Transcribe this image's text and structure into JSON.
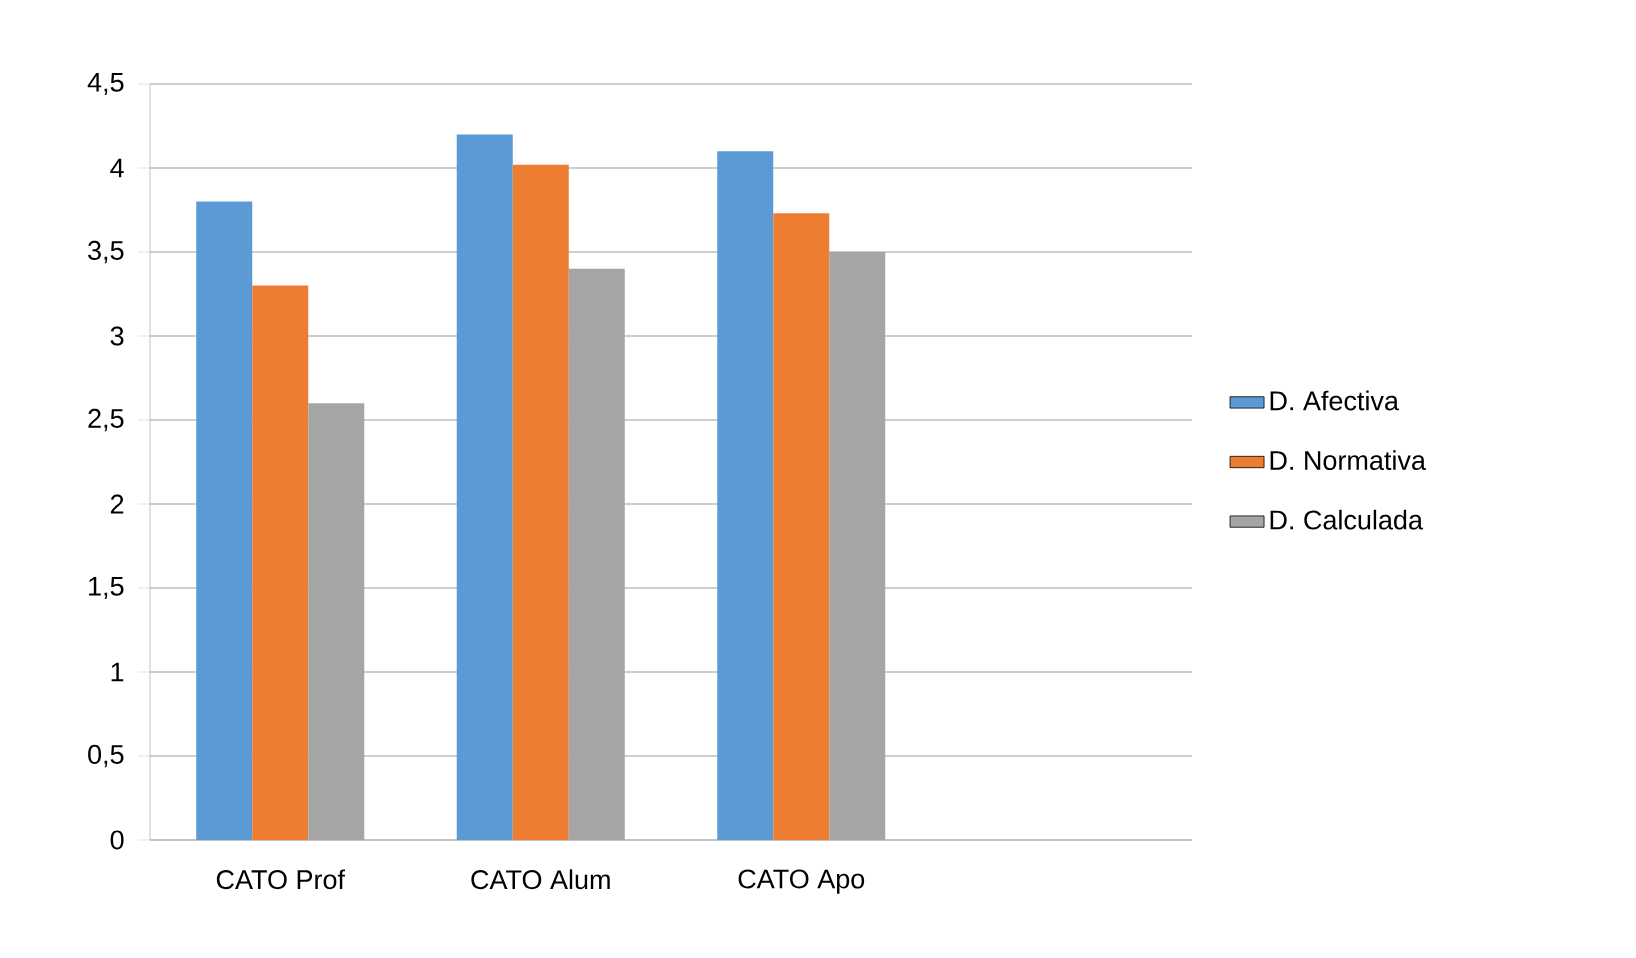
{
  "chart_data": {
    "type": "bar",
    "categories": [
      "CATO Prof",
      "CATO Alum",
      "CATO Apo",
      null
    ],
    "series": [
      {
        "name": "D. Afectiva",
        "color": "#5b9bd5",
        "values": [
          3.8,
          4.2,
          4.1,
          null
        ]
      },
      {
        "name": "D. Normativa",
        "color": "#ed7d31",
        "values": [
          3.3,
          4.02,
          3.73,
          null
        ]
      },
      {
        "name": "D. Calculada",
        "color": "#a5a5a5",
        "values": [
          2.6,
          3.4,
          3.5,
          null
        ]
      }
    ],
    "ylim": [
      0,
      4.5
    ],
    "yticks": [
      0,
      {
        "value": 0.5,
        "label": "0,5"
      },
      1,
      {
        "value": 1.5,
        "label": "1,5"
      },
      2,
      {
        "value": 2.5,
        "label": "2,5"
      },
      3,
      {
        "value": 3.5,
        "label": "3,5"
      },
      4,
      {
        "value": 4.5,
        "label": "4,5"
      }
    ],
    "grid": "y",
    "legend": "right"
  }
}
